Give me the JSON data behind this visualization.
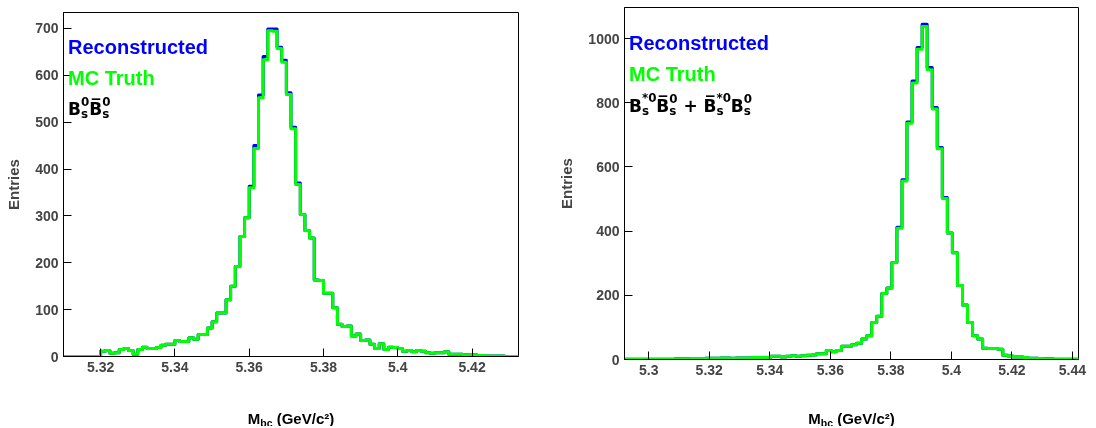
{
  "chart_data": [
    {
      "type": "histogram",
      "xlabel": "M$_{bc}$ (GeV/c²)",
      "ylabel": "Entries",
      "annotations": [
        "B$_{s}$$^{0}$B̅$_{s}$$^{0}$"
      ],
      "legend": "top left",
      "grid": false,
      "bins": [
        5.31,
        5.31125,
        5.3125,
        5.31375,
        5.315,
        5.31625,
        5.3175,
        5.31875,
        5.32,
        5.32125,
        5.3225,
        5.32375,
        5.325,
        5.32625,
        5.3275,
        5.32875,
        5.33,
        5.33125,
        5.3325,
        5.33375,
        5.335,
        5.33625,
        5.3375,
        5.33875,
        5.34,
        5.34125,
        5.3425,
        5.34375,
        5.345,
        5.34625,
        5.3475,
        5.34875,
        5.35,
        5.35125,
        5.3525,
        5.35375,
        5.355,
        5.35625,
        5.3575,
        5.35875,
        5.36,
        5.36125,
        5.3625,
        5.36375,
        5.365,
        5.36625,
        5.3675,
        5.36875,
        5.37,
        5.37125,
        5.3725,
        5.37375,
        5.375,
        5.37625,
        5.3775,
        5.37875,
        5.38,
        5.38125,
        5.3825,
        5.38375,
        5.385,
        5.38625,
        5.3875,
        5.38875,
        5.39,
        5.39125,
        5.3925,
        5.39375,
        5.395,
        5.39625,
        5.3975,
        5.39875,
        5.4,
        5.40125,
        5.4025,
        5.40375,
        5.405,
        5.40625,
        5.4075,
        5.40875,
        5.41,
        5.41125,
        5.4125,
        5.41375,
        5.415,
        5.41625,
        5.4175,
        5.41875,
        5.42,
        5.42125,
        5.4225,
        5.42375,
        5.425,
        5.42625,
        5.4275,
        5.42875,
        5.43,
        5.43125,
        5.4325
      ],
      "series": [
        {
          "name": "Reconstructed",
          "color": "#0000ff",
          "values": [
            0,
            0,
            0,
            0,
            0,
            0,
            0,
            0,
            11,
            13,
            7,
            8,
            15,
            17,
            13,
            5,
            15,
            20,
            17,
            17,
            19,
            24,
            26,
            26,
            34,
            32,
            32,
            40,
            37,
            47,
            47,
            61,
            74,
            93,
            93,
            121,
            150,
            192,
            256,
            296,
            363,
            450,
            558,
            640,
            699,
            699,
            660,
            632,
            563,
            489,
            370,
            303,
            269,
            253,
            163,
            162,
            135,
            135,
            104,
            69,
            64,
            65,
            44,
            48,
            34,
            35,
            26,
            17,
            27,
            15,
            20,
            19,
            17,
            11,
            13,
            10,
            13,
            11,
            8,
            7,
            8,
            8,
            10,
            5,
            5,
            5,
            4,
            3,
            4,
            2,
            2,
            1,
            1,
            1,
            1,
            0,
            0,
            0
          ]
        },
        {
          "name": "MC Truth",
          "color": "#00ff00",
          "values": [
            0,
            0,
            0,
            0,
            0,
            0,
            0,
            0,
            11,
            13,
            7,
            8,
            15,
            17,
            13,
            5,
            15,
            20,
            17,
            17,
            19,
            24,
            26,
            26,
            34,
            32,
            32,
            40,
            37,
            47,
            47,
            61,
            74,
            93,
            93,
            121,
            150,
            192,
            256,
            296,
            360,
            444,
            552,
            633,
            695,
            694,
            657,
            628,
            559,
            486,
            367,
            303,
            269,
            253,
            163,
            162,
            135,
            135,
            104,
            69,
            64,
            65,
            44,
            48,
            34,
            35,
            26,
            17,
            27,
            15,
            20,
            19,
            17,
            11,
            13,
            10,
            13,
            11,
            8,
            7,
            8,
            8,
            10,
            5,
            5,
            5,
            4,
            3,
            4,
            2,
            2,
            1,
            1,
            1,
            1,
            0,
            0,
            0
          ]
        }
      ],
      "xlim": [
        5.31,
        5.4325
      ],
      "ylim": [
        0,
        734
      ],
      "xticks": [
        5.32,
        5.34,
        5.36,
        5.38,
        5.4,
        5.42
      ],
      "yticks": [
        0,
        100,
        200,
        300,
        400,
        500,
        600,
        700
      ]
    },
    {
      "type": "histogram",
      "xlabel": "M$_{bc}$ (GeV/c²)",
      "ylabel": "Entries",
      "annotations": [
        "B$_{s}$$^{*0}$B̅$_{s}$$^{0}$ + B̅$_{s}$$^{*0}$B$_{s}$$^{0}$"
      ],
      "legend": "top left",
      "grid": false,
      "bins": [
        5.292,
        5.29367,
        5.29533,
        5.297,
        5.29867,
        5.30033,
        5.302,
        5.30367,
        5.30533,
        5.307,
        5.30867,
        5.31033,
        5.312,
        5.31367,
        5.31533,
        5.317,
        5.31867,
        5.32033,
        5.322,
        5.32367,
        5.32533,
        5.327,
        5.32867,
        5.33033,
        5.332,
        5.33367,
        5.33533,
        5.337,
        5.33867,
        5.34033,
        5.342,
        5.34367,
        5.34533,
        5.347,
        5.34867,
        5.35033,
        5.352,
        5.35367,
        5.35533,
        5.357,
        5.35867,
        5.36033,
        5.362,
        5.36367,
        5.36533,
        5.367,
        5.36867,
        5.37033,
        5.372,
        5.37367,
        5.37533,
        5.377,
        5.37867,
        5.38033,
        5.382,
        5.38367,
        5.38533,
        5.387,
        5.38867,
        5.39033,
        5.392,
        5.39367,
        5.39533,
        5.397,
        5.39867,
        5.40033,
        5.402,
        5.40367,
        5.40533,
        5.407,
        5.40867,
        5.41033,
        5.412,
        5.41367,
        5.41533,
        5.417,
        5.41867,
        5.42033,
        5.422,
        5.42367,
        5.42533,
        5.427,
        5.42867,
        5.43033,
        5.432,
        5.43367,
        5.43533,
        5.437,
        5.43867,
        5.44033,
        5.442
      ],
      "series": [
        {
          "name": "Reconstructed",
          "color": "#0000ff",
          "values": [
            1,
            1,
            1,
            1,
            1,
            1,
            1,
            1,
            1,
            1,
            2,
            2,
            2,
            3,
            3,
            3,
            4,
            4,
            4,
            5,
            5,
            4,
            5,
            5,
            5,
            6,
            6,
            6,
            6,
            10,
            10,
            8,
            10,
            12,
            10,
            12,
            13,
            14,
            18,
            18,
            28,
            24,
            28,
            41,
            41,
            46,
            51,
            64,
            74,
            115,
            135,
            206,
            223,
            302,
            412,
            560,
            740,
            868,
            972,
            1045,
            910,
            785,
            661,
            505,
            394,
            333,
            231,
            170,
            115,
            74,
            64,
            35,
            34,
            34,
            32,
            13,
            11,
            8,
            8,
            6,
            4,
            4,
            3,
            2,
            2,
            1,
            1,
            1,
            1,
            1
          ]
        },
        {
          "name": "MC Truth",
          "color": "#00ff00",
          "values": [
            1,
            1,
            1,
            1,
            1,
            1,
            1,
            1,
            1,
            1,
            2,
            2,
            2,
            3,
            3,
            3,
            4,
            4,
            4,
            5,
            5,
            4,
            5,
            5,
            5,
            6,
            6,
            6,
            6,
            10,
            10,
            8,
            10,
            12,
            10,
            12,
            13,
            14,
            18,
            18,
            28,
            24,
            28,
            41,
            41,
            46,
            51,
            64,
            74,
            115,
            135,
            206,
            223,
            302,
            409,
            556,
            736,
            862,
            967,
            1038,
            903,
            781,
            657,
            502,
            394,
            333,
            231,
            170,
            115,
            74,
            64,
            35,
            34,
            34,
            32,
            13,
            11,
            8,
            8,
            6,
            4,
            4,
            3,
            2,
            2,
            1,
            1,
            1,
            1,
            1
          ]
        }
      ],
      "xlim": [
        5.292,
        5.442
      ],
      "ylim": [
        0,
        1097
      ],
      "xticks": [
        5.3,
        5.32,
        5.34,
        5.36,
        5.38,
        5.4,
        5.42,
        5.44
      ],
      "yticks": [
        0,
        200,
        400,
        600,
        800,
        1000
      ]
    }
  ]
}
